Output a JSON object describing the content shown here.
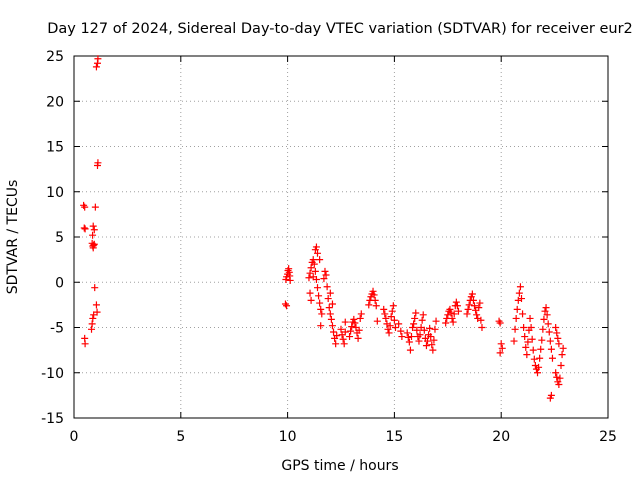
{
  "chart_data": {
    "type": "scatter",
    "title": "Day 127 of 2024, Sidereal Day-to-day VTEC variation (SDTVAR) for receiver eur2",
    "xlabel": "GPS time / hours",
    "ylabel": "SDTVAR / TECUs",
    "xlim": [
      0,
      25
    ],
    "ylim": [
      -15,
      25
    ],
    "x_ticks": [
      0,
      5,
      10,
      15,
      20,
      25
    ],
    "y_ticks": [
      -15,
      -10,
      -5,
      0,
      5,
      10,
      15,
      20,
      25
    ],
    "x_tick_labels": [
      "0",
      "5",
      "10",
      "15",
      "20",
      "25"
    ],
    "y_tick_labels": [
      "-15",
      "-10",
      "-5",
      "0",
      "5",
      "10",
      "15",
      "20",
      "25"
    ],
    "grid": true,
    "marker": "+",
    "color": "#ff0000",
    "series": [
      {
        "name": "SDTVAR",
        "points": [
          [
            0.45,
            8.5
          ],
          [
            0.5,
            8.3
          ],
          [
            0.48,
            6.0
          ],
          [
            0.52,
            5.9
          ],
          [
            0.5,
            -6.2
          ],
          [
            0.52,
            -6.8
          ],
          [
            0.85,
            4.3
          ],
          [
            0.88,
            4.0
          ],
          [
            0.9,
            3.8
          ],
          [
            0.92,
            4.1
          ],
          [
            0.95,
            4.2
          ],
          [
            0.87,
            5.2
          ],
          [
            0.9,
            6.2
          ],
          [
            0.95,
            5.8
          ],
          [
            1.0,
            8.3
          ],
          [
            0.82,
            -5.2
          ],
          [
            0.85,
            -4.6
          ],
          [
            0.88,
            -4.0
          ],
          [
            0.92,
            -3.6
          ],
          [
            0.97,
            -0.6
          ],
          [
            1.05,
            -2.5
          ],
          [
            1.08,
            -3.3
          ],
          [
            1.1,
            12.9
          ],
          [
            1.12,
            13.2
          ],
          [
            1.05,
            23.8
          ],
          [
            1.1,
            24.2
          ],
          [
            1.12,
            24.7
          ],
          [
            9.9,
            -2.4
          ],
          [
            9.95,
            -2.6
          ],
          [
            9.92,
            0.3
          ],
          [
            9.95,
            0.6
          ],
          [
            10.0,
            0.9
          ],
          [
            10.02,
            1.3
          ],
          [
            10.05,
            1.5
          ],
          [
            10.08,
            1.1
          ],
          [
            10.1,
            0.7
          ],
          [
            10.12,
            0.2
          ],
          [
            11.0,
            0.5
          ],
          [
            11.05,
            1.0
          ],
          [
            11.1,
            1.6
          ],
          [
            11.15,
            2.2
          ],
          [
            11.2,
            2.5
          ],
          [
            11.25,
            2.0
          ],
          [
            11.3,
            1.2
          ],
          [
            11.35,
            0.3
          ],
          [
            11.4,
            -0.6
          ],
          [
            11.45,
            -1.5
          ],
          [
            11.5,
            -2.3
          ],
          [
            11.55,
            -3.0
          ],
          [
            11.05,
            -1.2
          ],
          [
            11.1,
            -2.0
          ],
          [
            11.2,
            0.6
          ],
          [
            11.3,
            3.6
          ],
          [
            11.35,
            3.9
          ],
          [
            11.4,
            3.2
          ],
          [
            11.5,
            2.5
          ],
          [
            11.55,
            -4.8
          ],
          [
            11.6,
            -3.5
          ],
          [
            11.7,
            0.4
          ],
          [
            11.75,
            1.2
          ],
          [
            11.8,
            0.8
          ],
          [
            11.85,
            -0.5
          ],
          [
            11.9,
            -1.8
          ],
          [
            11.95,
            -2.8
          ],
          [
            12.0,
            -3.5
          ],
          [
            12.05,
            -4.1
          ],
          [
            12.1,
            -4.8
          ],
          [
            12.15,
            -5.5
          ],
          [
            12.2,
            -6.2
          ],
          [
            12.25,
            -6.8
          ],
          [
            12.3,
            -5.9
          ],
          [
            12.0,
            -1.2
          ],
          [
            12.1,
            -2.4
          ],
          [
            12.5,
            -5.2
          ],
          [
            12.55,
            -5.8
          ],
          [
            12.6,
            -6.3
          ],
          [
            12.65,
            -6.8
          ],
          [
            12.7,
            -5.5
          ],
          [
            12.7,
            -4.4
          ],
          [
            12.9,
            -6.0
          ],
          [
            12.95,
            -5.4
          ],
          [
            13.0,
            -4.9
          ],
          [
            13.05,
            -4.4
          ],
          [
            13.1,
            -4.1
          ],
          [
            13.15,
            -4.5
          ],
          [
            13.2,
            -5.0
          ],
          [
            13.25,
            -5.6
          ],
          [
            13.3,
            -6.2
          ],
          [
            13.35,
            -5.3
          ],
          [
            13.4,
            -4.0
          ],
          [
            13.45,
            -3.5
          ],
          [
            13.8,
            -2.5
          ],
          [
            13.85,
            -2.0
          ],
          [
            13.9,
            -1.6
          ],
          [
            13.95,
            -1.3
          ],
          [
            14.0,
            -1.0
          ],
          [
            14.05,
            -1.4
          ],
          [
            14.1,
            -2.0
          ],
          [
            14.15,
            -2.6
          ],
          [
            14.2,
            -4.3
          ],
          [
            14.5,
            -3.0
          ],
          [
            14.55,
            -3.5
          ],
          [
            14.6,
            -4.0
          ],
          [
            14.65,
            -4.6
          ],
          [
            14.7,
            -5.2
          ],
          [
            14.75,
            -5.6
          ],
          [
            14.8,
            -4.8
          ],
          [
            14.85,
            -3.8
          ],
          [
            14.9,
            -3.2
          ],
          [
            14.95,
            -2.6
          ],
          [
            15.0,
            -4.2
          ],
          [
            15.05,
            -5.0
          ],
          [
            15.2,
            -4.6
          ],
          [
            15.3,
            -5.4
          ],
          [
            15.35,
            -6.0
          ],
          [
            15.6,
            -5.6
          ],
          [
            15.65,
            -6.1
          ],
          [
            15.7,
            -6.6
          ],
          [
            15.75,
            -7.5
          ],
          [
            15.8,
            -6.0
          ],
          [
            15.85,
            -5.0
          ],
          [
            15.9,
            -4.6
          ],
          [
            15.95,
            -4.0
          ],
          [
            16.0,
            -3.4
          ],
          [
            16.05,
            -5.3
          ],
          [
            16.1,
            -6.0
          ],
          [
            16.15,
            -6.5
          ],
          [
            16.2,
            -5.8
          ],
          [
            16.25,
            -5.0
          ],
          [
            16.3,
            -4.2
          ],
          [
            16.35,
            -3.6
          ],
          [
            16.4,
            -5.3
          ],
          [
            16.45,
            -6.2
          ],
          [
            16.5,
            -7.0
          ],
          [
            16.55,
            -6.5
          ],
          [
            16.6,
            -5.8
          ],
          [
            16.65,
            -5.1
          ],
          [
            16.7,
            -6.0
          ],
          [
            16.75,
            -6.9
          ],
          [
            16.8,
            -7.5
          ],
          [
            16.85,
            -6.4
          ],
          [
            16.9,
            -5.2
          ],
          [
            16.95,
            -4.3
          ],
          [
            17.4,
            -4.5
          ],
          [
            17.45,
            -4.0
          ],
          [
            17.5,
            -3.6
          ],
          [
            17.55,
            -3.2
          ],
          [
            17.6,
            -3.0
          ],
          [
            17.65,
            -3.4
          ],
          [
            17.7,
            -4.0
          ],
          [
            17.75,
            -4.4
          ],
          [
            17.8,
            -3.5
          ],
          [
            17.85,
            -2.6
          ],
          [
            17.9,
            -2.2
          ],
          [
            17.95,
            -2.6
          ],
          [
            18.0,
            -3.2
          ],
          [
            18.4,
            -3.5
          ],
          [
            18.45,
            -3.0
          ],
          [
            18.5,
            -2.5
          ],
          [
            18.55,
            -2.0
          ],
          [
            18.6,
            -1.6
          ],
          [
            18.65,
            -1.3
          ],
          [
            18.7,
            -2.0
          ],
          [
            18.75,
            -2.6
          ],
          [
            18.8,
            -3.1
          ],
          [
            18.85,
            -3.6
          ],
          [
            18.9,
            -4.0
          ],
          [
            18.95,
            -2.8
          ],
          [
            19.0,
            -2.3
          ],
          [
            19.05,
            -4.2
          ],
          [
            19.1,
            -5.0
          ],
          [
            19.9,
            -4.3
          ],
          [
            19.95,
            -4.5
          ],
          [
            20.0,
            -6.8
          ],
          [
            20.05,
            -7.3
          ],
          [
            19.95,
            -7.8
          ],
          [
            20.6,
            -6.5
          ],
          [
            20.65,
            -5.2
          ],
          [
            20.7,
            -4.0
          ],
          [
            20.75,
            -3.0
          ],
          [
            20.8,
            -2.0
          ],
          [
            20.85,
            -1.2
          ],
          [
            20.9,
            -0.5
          ],
          [
            20.95,
            -1.8
          ],
          [
            21.0,
            -3.5
          ],
          [
            21.05,
            -5.0
          ],
          [
            21.1,
            -6.0
          ],
          [
            21.15,
            -7.2
          ],
          [
            21.2,
            -8.0
          ],
          [
            21.25,
            -6.6
          ],
          [
            21.3,
            -5.3
          ],
          [
            21.35,
            -4.0
          ],
          [
            21.4,
            -5.0
          ],
          [
            21.45,
            -6.3
          ],
          [
            21.5,
            -7.5
          ],
          [
            21.55,
            -8.5
          ],
          [
            21.6,
            -9.2
          ],
          [
            21.65,
            -9.6
          ],
          [
            21.7,
            -10.0
          ],
          [
            21.75,
            -9.4
          ],
          [
            21.8,
            -8.4
          ],
          [
            21.85,
            -7.4
          ],
          [
            21.9,
            -6.4
          ],
          [
            21.95,
            -5.2
          ],
          [
            22.0,
            -4.1
          ],
          [
            22.05,
            -3.2
          ],
          [
            22.1,
            -2.8
          ],
          [
            22.15,
            -3.6
          ],
          [
            22.2,
            -4.6
          ],
          [
            22.25,
            -5.5
          ],
          [
            22.3,
            -6.5
          ],
          [
            22.35,
            -7.4
          ],
          [
            22.4,
            -8.4
          ],
          [
            22.3,
            -12.8
          ],
          [
            22.35,
            -12.5
          ],
          [
            22.55,
            -5.0
          ],
          [
            22.6,
            -5.6
          ],
          [
            22.65,
            -6.2
          ],
          [
            22.7,
            -6.8
          ],
          [
            22.55,
            -10.0
          ],
          [
            22.6,
            -10.5
          ],
          [
            22.65,
            -11.0
          ],
          [
            22.7,
            -11.3
          ],
          [
            22.75,
            -10.6
          ],
          [
            22.8,
            -9.2
          ],
          [
            22.85,
            -8.0
          ],
          [
            22.9,
            -7.3
          ]
        ]
      }
    ]
  }
}
